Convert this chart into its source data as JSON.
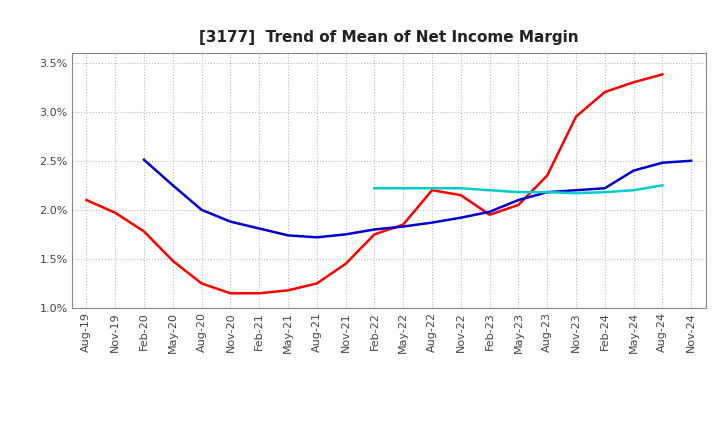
{
  "title": "[3177]  Trend of Mean of Net Income Margin",
  "ylim": [
    0.01,
    0.036
  ],
  "yticks": [
    0.01,
    0.015,
    0.02,
    0.025,
    0.03,
    0.035
  ],
  "ytick_labels": [
    "1.0%",
    "1.5%",
    "2.0%",
    "2.5%",
    "3.0%",
    "3.5%"
  ],
  "x_labels": [
    "Aug-19",
    "Nov-19",
    "Feb-20",
    "May-20",
    "Aug-20",
    "Nov-20",
    "Feb-21",
    "May-21",
    "Aug-21",
    "Nov-21",
    "Feb-22",
    "May-22",
    "Aug-22",
    "Nov-22",
    "Feb-23",
    "May-23",
    "Aug-23",
    "Nov-23",
    "Feb-24",
    "May-24",
    "Aug-24",
    "Nov-24"
  ],
  "line_3y": [
    0.021,
    0.0197,
    0.0178,
    0.0148,
    0.0125,
    0.0115,
    0.0115,
    0.0118,
    0.0125,
    0.0145,
    0.0175,
    0.0185,
    0.022,
    0.0215,
    0.0195,
    0.0205,
    0.0235,
    0.0295,
    0.032,
    0.033,
    0.0338,
    null
  ],
  "line_5y": [
    null,
    null,
    0.0251,
    0.0225,
    0.02,
    0.0188,
    0.0181,
    0.0174,
    0.0172,
    0.0175,
    0.018,
    0.0183,
    0.0187,
    0.0192,
    0.0198,
    0.021,
    0.0218,
    0.022,
    0.0222,
    0.024,
    0.0248,
    0.025
  ],
  "line_7y": [
    null,
    null,
    null,
    null,
    null,
    null,
    null,
    null,
    null,
    null,
    0.0222,
    0.0222,
    0.0222,
    0.0222,
    0.022,
    0.0218,
    0.0218,
    0.0217,
    0.0218,
    0.022,
    0.0225,
    null
  ],
  "line_10y": [
    null,
    null,
    null,
    null,
    null,
    null,
    null,
    null,
    null,
    null,
    null,
    null,
    null,
    null,
    null,
    null,
    null,
    null,
    null,
    null,
    null,
    null
  ],
  "color_3y": "#ff0000",
  "color_5y": "#0000cc",
  "color_7y": "#00cccc",
  "color_10y": "#006600",
  "background_color": "#ffffff",
  "grid_color": "#aaaaaa",
  "title_fontsize": 11,
  "tick_fontsize": 8
}
